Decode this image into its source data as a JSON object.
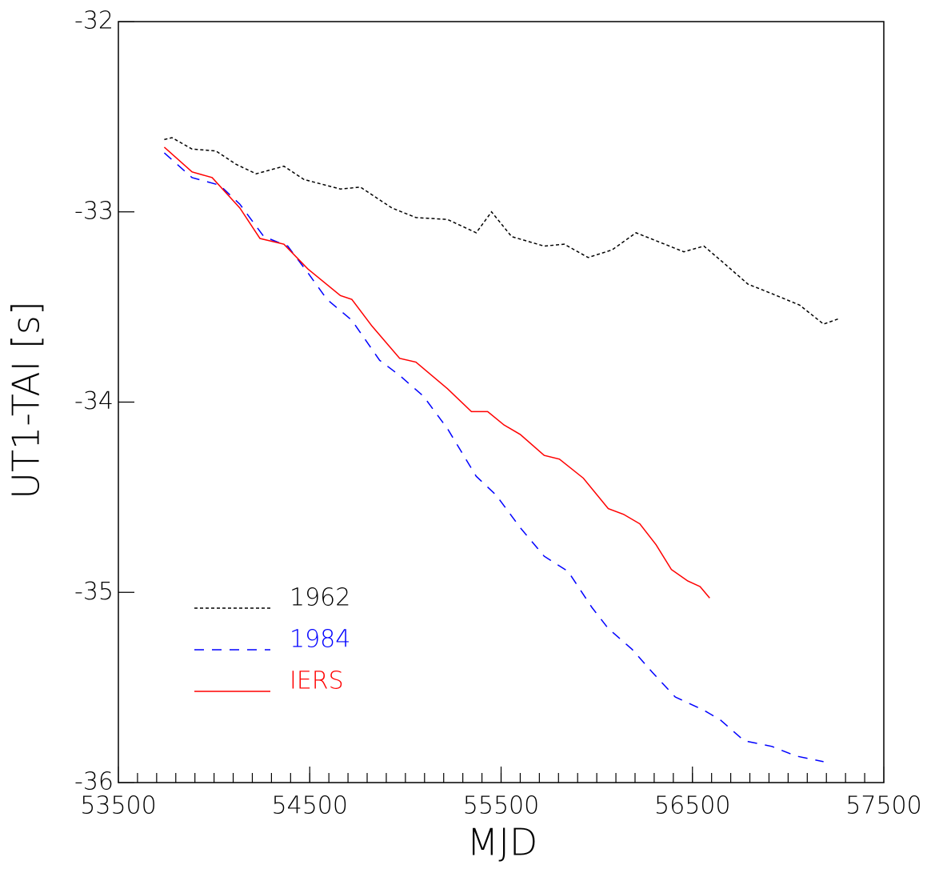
{
  "chart_data": {
    "type": "line",
    "xlabel": "MJD",
    "ylabel": "UT1-TAI [s]",
    "xlim": [
      53500,
      57500
    ],
    "ylim": [
      -36,
      -32
    ],
    "xticks": [
      53500,
      54500,
      55500,
      56500,
      57500
    ],
    "yticks": [
      -36,
      -35,
      -34,
      -33,
      -32
    ],
    "xminor_step": 100,
    "legend": "lower left",
    "series": [
      {
        "name": "1962",
        "color": "#000000",
        "dash": "4 3",
        "x": [
          53740,
          53780,
          53885,
          54010,
          54115,
          54220,
          54365,
          54470,
          54660,
          54765,
          54930,
          55055,
          55220,
          55370,
          55450,
          55555,
          55725,
          55830,
          55955,
          56080,
          56205,
          56330,
          56455,
          56560,
          56665,
          56790,
          56915,
          57060,
          57185,
          57270
        ],
        "values": [
          -32.62,
          -32.61,
          -32.67,
          -32.68,
          -32.75,
          -32.8,
          -32.76,
          -32.83,
          -32.88,
          -32.87,
          -32.98,
          -33.03,
          -33.04,
          -33.11,
          -33.0,
          -33.13,
          -33.18,
          -33.17,
          -33.24,
          -33.2,
          -33.11,
          -33.16,
          -33.21,
          -33.18,
          -33.27,
          -33.38,
          -33.43,
          -33.49,
          -33.59,
          -33.56
        ]
      },
      {
        "name": "1984",
        "color": "#0000ff",
        "dash": "12 10",
        "x": [
          53740,
          53885,
          54030,
          54135,
          54260,
          54385,
          54490,
          54590,
          54720,
          54865,
          54970,
          55095,
          55220,
          55370,
          55475,
          55600,
          55725,
          55850,
          55975,
          56060,
          56185,
          56290,
          56410,
          56560,
          56645,
          56770,
          56915,
          57040,
          57185
        ],
        "values": [
          -32.69,
          -32.82,
          -32.86,
          -32.96,
          -33.13,
          -33.18,
          -33.32,
          -33.46,
          -33.57,
          -33.78,
          -33.86,
          -33.97,
          -34.14,
          -34.39,
          -34.49,
          -34.66,
          -34.81,
          -34.89,
          -35.08,
          -35.19,
          -35.3,
          -35.42,
          -35.55,
          -35.62,
          -35.67,
          -35.78,
          -35.81,
          -35.86,
          -35.89
        ]
      },
      {
        "name": "IERS",
        "color": "#ff0000",
        "dash": "none",
        "x": [
          53740,
          53885,
          53990,
          54135,
          54240,
          54365,
          54490,
          54660,
          54720,
          54825,
          54910,
          54970,
          55055,
          55220,
          55345,
          55430,
          55515,
          55600,
          55725,
          55805,
          55930,
          56060,
          56140,
          56225,
          56310,
          56390,
          56475,
          56540,
          56590
        ],
        "values": [
          -32.66,
          -32.79,
          -32.82,
          -32.98,
          -33.14,
          -33.17,
          -33.3,
          -33.44,
          -33.46,
          -33.6,
          -33.7,
          -33.77,
          -33.79,
          -33.93,
          -34.05,
          -34.05,
          -34.12,
          -34.17,
          -34.28,
          -34.3,
          -34.4,
          -34.56,
          -34.59,
          -34.64,
          -34.75,
          -34.88,
          -34.94,
          -34.97,
          -35.03
        ]
      }
    ]
  }
}
